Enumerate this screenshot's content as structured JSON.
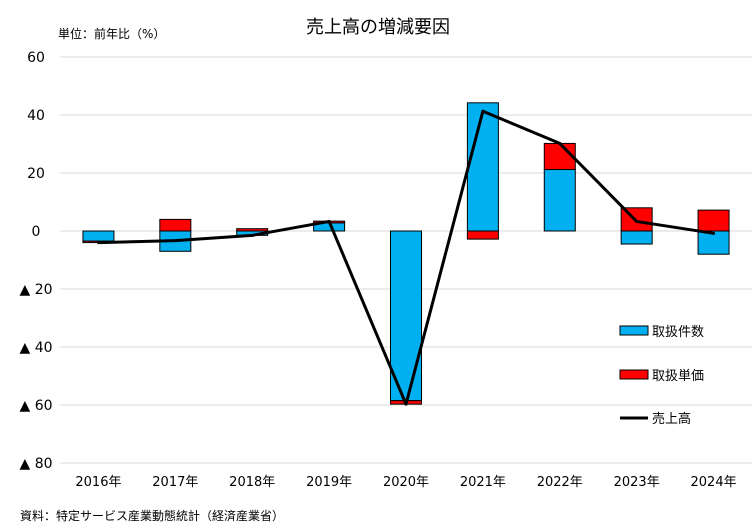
{
  "chart_data": {
    "type": "bar",
    "title": "売上高の増減要因",
    "unit_label": "単位：前年比（%）",
    "source": "資料：特定サービス産業動態統計（経済産業省）",
    "categories": [
      "2016年",
      "2017年",
      "2018年",
      "2019年",
      "2020年",
      "2021年",
      "2022年",
      "2023年",
      "2024年"
    ],
    "ylim": [
      -80,
      60
    ],
    "yticks": [
      60,
      40,
      20,
      0,
      -20,
      -40,
      -60,
      -80
    ],
    "ytick_labels": [
      "60",
      "40",
      "20",
      "0",
      "▲ 20",
      "▲ 40",
      "▲ 60",
      "▲ 80"
    ],
    "grid": true,
    "legend_position": "right",
    "series": [
      {
        "name": "取扱件数",
        "kind": "bar",
        "color": "#00b0f0",
        "values": [
          -3.5,
          -7,
          -1.5,
          2.8,
          -58.5,
          44.2,
          21.2,
          -4.5,
          -8
        ]
      },
      {
        "name": "取扱単価",
        "kind": "bar",
        "color": "#ff0000",
        "values": [
          -0.5,
          4,
          0.8,
          0.6,
          -1.2,
          -2.8,
          9,
          8,
          7.2
        ]
      },
      {
        "name": "売上高",
        "kind": "line",
        "color": "#000000",
        "values": [
          -4,
          -3.3,
          -1.5,
          3.3,
          -59.7,
          41.3,
          30.2,
          3.3,
          -0.8
        ]
      }
    ]
  }
}
